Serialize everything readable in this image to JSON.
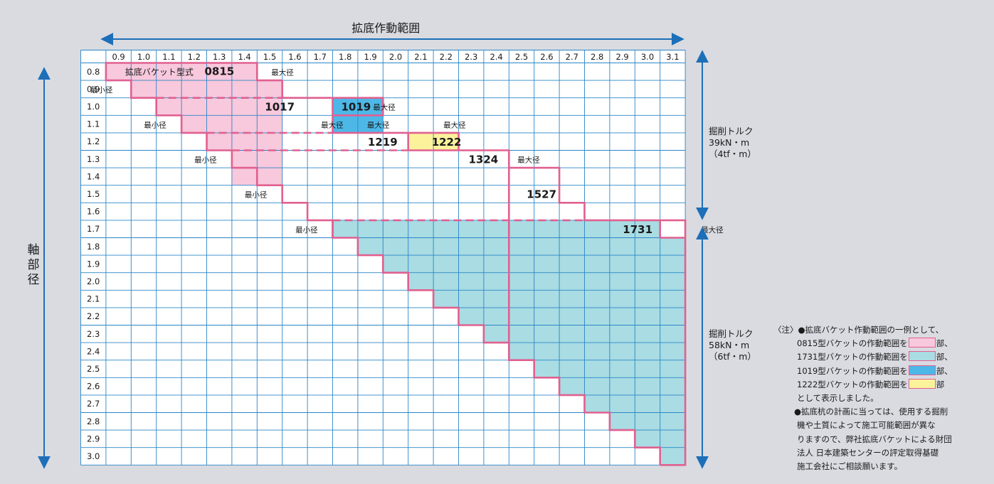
{
  "header": {
    "title": "拡底作動範囲"
  },
  "axis_left": {
    "label": "軸部径"
  },
  "grid": {
    "columns": [
      "0.9",
      "1.0",
      "1.1",
      "1.2",
      "1.3",
      "1.4",
      "1.5",
      "1.6",
      "1.7",
      "1.8",
      "1.9",
      "2.0",
      "2.1",
      "2.2",
      "2.3",
      "2.4",
      "2.5",
      "2.6",
      "2.7",
      "2.8",
      "2.9",
      "3.0",
      "3.1"
    ],
    "rows": [
      "0.8",
      "0.9",
      "1.0",
      "1.1",
      "1.2",
      "1.3",
      "1.4",
      "1.5",
      "1.6",
      "1.7",
      "1.8",
      "1.9",
      "2.0",
      "2.1",
      "2.2",
      "2.3",
      "2.4",
      "2.5",
      "2.6",
      "2.7",
      "2.8",
      "2.9",
      "3.0"
    ]
  },
  "labels": {
    "type_prefix": "拡底バケット型式",
    "max_dia": "最大径",
    "min_dia": "最小径",
    "models": [
      "0815",
      "1017",
      "1019",
      "1219",
      "1222",
      "1324",
      "1527",
      "1731"
    ]
  },
  "torque_upper": {
    "title": "掘削トルク",
    "value": "39kN・m",
    "alt": "（4tf・m）"
  },
  "torque_lower": {
    "title": "掘削トルク",
    "value": "58kN・m",
    "alt": "（6tf・m）"
  },
  "note": {
    "prefix": "〈注〉",
    "line1": "●拡底バケット作動範囲の一例として、",
    "legend": [
      {
        "text": "0815型バケットの作動範囲を",
        "color": "#f8c8dc",
        "suffix": "部、"
      },
      {
        "text": "1731型バケットの作動範囲を",
        "color": "#a9dce3",
        "suffix": "部、"
      },
      {
        "text": "1019型バケットの作動範囲を",
        "color": "#4db8e8",
        "suffix": "部、"
      },
      {
        "text": "1222型バケットの作動範囲を",
        "color": "#fcf29c",
        "suffix": "部"
      }
    ],
    "line_shown": "として表示しました。",
    "para2": [
      "●拡底杭の計画に当っては、使用する掘削",
      "機や土質によって施工可能範囲が異な",
      "りますので、弊社拡底バケットによる財団",
      "法人 日本建築センターの評定取得基礎",
      "施工会社にご相談願います。"
    ]
  },
  "colors": {
    "pink": "#f8c8dc",
    "cyan": "#a9dce3",
    "blue": "#4db8e8",
    "yellow": "#fcf29c",
    "line": "#2b86c8",
    "outline": "#e06090",
    "arrow": "#1d6fb8"
  }
}
